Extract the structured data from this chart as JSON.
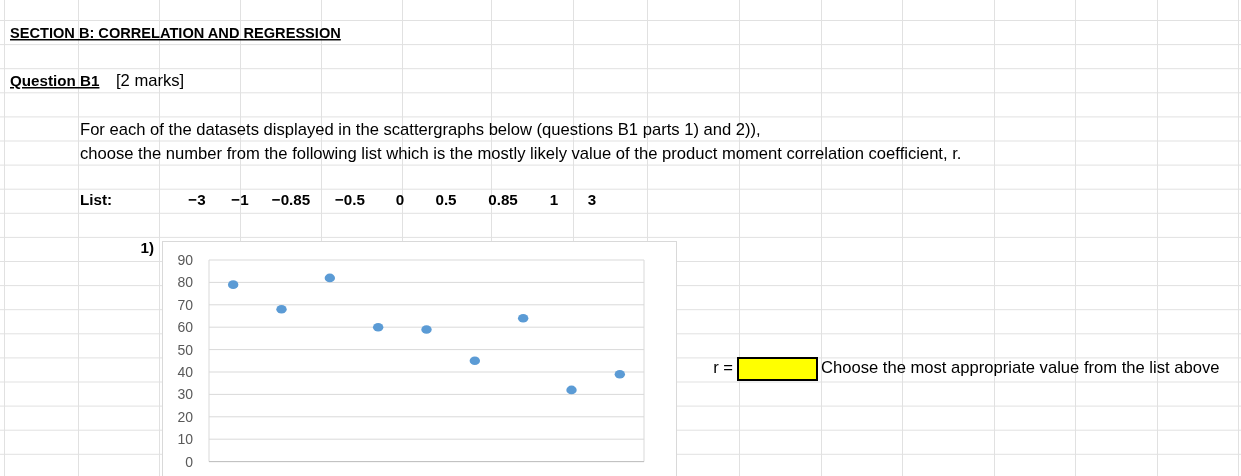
{
  "chart_data": {
    "type": "scatter",
    "title": "SECTION B: CORRELATION AND REGRESSION",
    "subtitle": "Question B1",
    "annotations": [
      "[2 marks]",
      "For each of the datasets displayed in the scattergraphs below (questions B1 parts 1) and 2)),",
      "choose the number from the following list which is the mostly likely value of the product moment correlation coefficient, r.",
      "List:",
      "−3",
      "−1",
      "−0.85",
      "−0.5",
      "0",
      "0.5",
      "0.85",
      "1",
      "3",
      "1)",
      "r =",
      "Choose the most appropriate value from the list above"
    ],
    "categories": [
      null,
      null,
      null,
      null,
      null,
      null,
      null,
      null,
      null
    ],
    "values": [
      79,
      68,
      82,
      60,
      59,
      45,
      64,
      32,
      39
    ],
    "color": "#5b9bd5",
    "ylim": [
      0,
      90
    ],
    "yticks": [
      0,
      10,
      20,
      30,
      40,
      50,
      60,
      70,
      80,
      90
    ],
    "grid": "y",
    "marker": "circle"
  }
}
